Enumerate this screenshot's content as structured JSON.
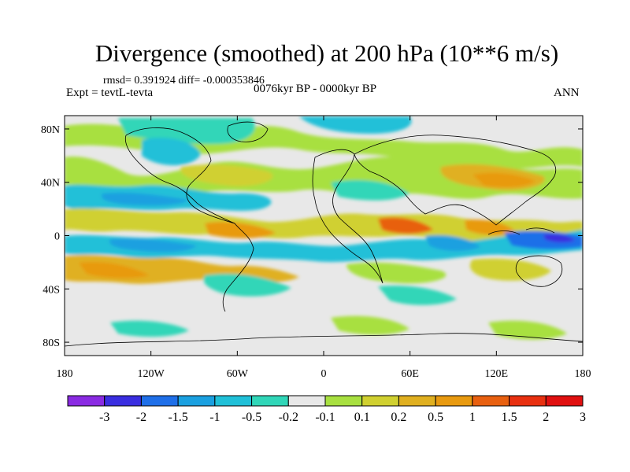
{
  "title": "Divergence (smoothed) at 200 hPa (10**6 m/s)",
  "stats": "rmsd= 0.391924 diff= -0.000353846",
  "experiment": "Expt = tevtL-tevta",
  "period": "0076kyr BP - 0000kyr BP",
  "season": "ANN",
  "lat_ticks": [
    {
      "lat": 80,
      "label": "80N"
    },
    {
      "lat": 40,
      "label": "40N"
    },
    {
      "lat": 0,
      "label": "0"
    },
    {
      "lat": -40,
      "label": "40S"
    },
    {
      "lat": -80,
      "label": "80S"
    }
  ],
  "lon_ticks": [
    {
      "lon": -180,
      "label": "180"
    },
    {
      "lon": -120,
      "label": "120W"
    },
    {
      "lon": -60,
      "label": "60W"
    },
    {
      "lon": 0,
      "label": "0"
    },
    {
      "lon": 60,
      "label": "60E"
    },
    {
      "lon": 120,
      "label": "120E"
    },
    {
      "lon": 180,
      "label": "180"
    }
  ],
  "colorbar": {
    "colors": [
      "#8a2be2",
      "#3a2ee0",
      "#1f6fe8",
      "#1aa0e0",
      "#20c0d8",
      "#30d6b8",
      "#e8e8e8",
      "#a8e040",
      "#d0d030",
      "#e0b020",
      "#e89a10",
      "#e86010",
      "#e83010",
      "#e01010"
    ],
    "labels": [
      "-3",
      "-2",
      "-1.5",
      "-1",
      "-0.5",
      "-0.2",
      "-0.1",
      "0.1",
      "0.2",
      "0.5",
      "1",
      "1.5",
      "2",
      "3"
    ]
  }
}
